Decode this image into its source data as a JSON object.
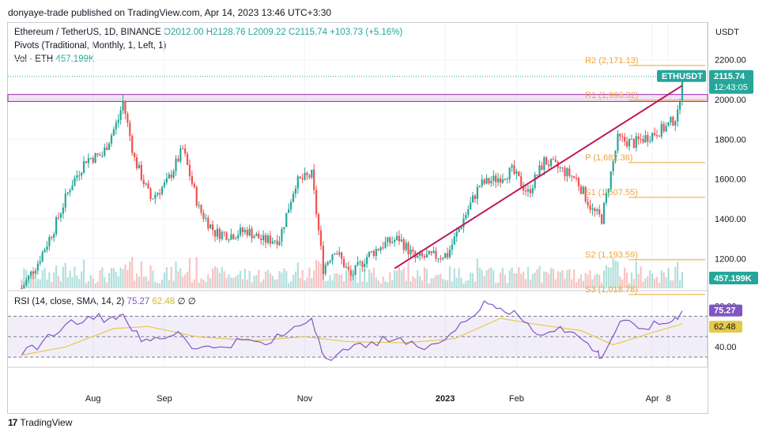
{
  "header": {
    "published": "donyaye-trade published on TradingView.com, Apr 14, 2023 13:46 UTC+3:30"
  },
  "legend": {
    "symbol": "Ethereum / TetherUS, 1D, BINANCE",
    "open": "O2012.00",
    "high": "H2128.76",
    "low": "L2009.22",
    "close": "C2115.74",
    "change": "+103.73 (+5.16%)",
    "pivots": "Pivots (Traditional, Monthly, 1, Left, 1)",
    "vol_label": "Vol · ETH",
    "vol_value": "457.199K"
  },
  "rsi_legend": {
    "label": "RSI (14, close, SMA, 14, 2)",
    "rsi": "75.27",
    "sma": "62.48",
    "extra": "∅ ∅"
  },
  "footer": {
    "brand": "TradingView",
    "logo": "17"
  },
  "colors": {
    "up": "#26a69a",
    "down": "#ef5350",
    "pivot": "#f0a33a",
    "trend": "#c2185b",
    "rsi": "#7e57c2",
    "rsi_ma": "#e5c94b"
  },
  "chart_data": {
    "type": "candlestick",
    "symbol": "ETHUSDT",
    "currency": "USDT",
    "last_price": "2115.74",
    "countdown": "12:43:05",
    "volume_last": "457.199K",
    "y_ticks": [
      "2200.00",
      "2000.00",
      "1800.00",
      "1600.00",
      "1400.00",
      "1200.00"
    ],
    "y_tick_values": [
      2200,
      2000,
      1800,
      1600,
      1400,
      1200
    ],
    "x_labels": [
      "Aug",
      "Sep",
      "Nov",
      "2023",
      "Feb",
      "Apr",
      "8"
    ],
    "pivots": [
      {
        "label": "R2 (2,171.13)",
        "value": 2171.13
      },
      {
        "label": "R1 (1,996.32)",
        "value": 1996.32
      },
      {
        "label": "P (1,682.36)",
        "value": 1682.36
      },
      {
        "label": "S1 (1,507.55)",
        "value": 1507.55
      },
      {
        "label": "S2 (1,193.59)",
        "value": 1193.59
      },
      {
        "label": "S3 (1,018.78)",
        "value": 1018.78
      }
    ],
    "resistance_zone": [
      1990,
      2025
    ],
    "trendline": {
      "from": {
        "date": "2022-12-10",
        "price": 1150
      },
      "to": {
        "date": "2023-04-14",
        "price": 2070
      }
    },
    "price_series": [
      [
        "2022-07-01",
        1050
      ],
      [
        "2022-07-08",
        1180
      ],
      [
        "2022-07-15",
        1350
      ],
      [
        "2022-07-22",
        1560
      ],
      [
        "2022-07-29",
        1700
      ],
      [
        "2022-08-05",
        1720
      ],
      [
        "2022-08-12",
        1900
      ],
      [
        "2022-08-14",
        1990
      ],
      [
        "2022-08-19",
        1700
      ],
      [
        "2022-08-26",
        1500
      ],
      [
        "2022-09-02",
        1580
      ],
      [
        "2022-09-09",
        1750
      ],
      [
        "2022-09-16",
        1450
      ],
      [
        "2022-09-23",
        1330
      ],
      [
        "2022-09-30",
        1320
      ],
      [
        "2022-10-07",
        1340
      ],
      [
        "2022-10-14",
        1290
      ],
      [
        "2022-10-21",
        1300
      ],
      [
        "2022-10-28",
        1580
      ],
      [
        "2022-11-04",
        1620
      ],
      [
        "2022-11-09",
        1150
      ],
      [
        "2022-11-14",
        1250
      ],
      [
        "2022-11-21",
        1110
      ],
      [
        "2022-11-28",
        1210
      ],
      [
        "2022-12-05",
        1270
      ],
      [
        "2022-12-12",
        1300
      ],
      [
        "2022-12-19",
        1200
      ],
      [
        "2022-12-26",
        1210
      ],
      [
        "2023-01-02",
        1220
      ],
      [
        "2023-01-09",
        1400
      ],
      [
        "2023-01-16",
        1570
      ],
      [
        "2023-01-23",
        1600
      ],
      [
        "2023-01-30",
        1640
      ],
      [
        "2023-02-06",
        1530
      ],
      [
        "2023-02-13",
        1690
      ],
      [
        "2023-02-20",
        1650
      ],
      [
        "2023-02-27",
        1600
      ],
      [
        "2023-03-06",
        1440
      ],
      [
        "2023-03-10",
        1400
      ],
      [
        "2023-03-17",
        1800
      ],
      [
        "2023-03-24",
        1780
      ],
      [
        "2023-03-31",
        1820
      ],
      [
        "2023-04-07",
        1860
      ],
      [
        "2023-04-12",
        1920
      ],
      [
        "2023-04-14",
        2115
      ]
    ],
    "rsi": {
      "ticks": [
        "80.00",
        "40.00"
      ],
      "tick_values": [
        80,
        40
      ],
      "bands": [
        70,
        50,
        30
      ],
      "rsi_value": "75.27",
      "sma_value": "62.48",
      "rsi_series": [
        [
          "2022-07-01",
          32
        ],
        [
          "2022-07-10",
          45
        ],
        [
          "2022-07-20",
          62
        ],
        [
          "2022-07-30",
          70
        ],
        [
          "2022-08-08",
          68
        ],
        [
          "2022-08-14",
          72
        ],
        [
          "2022-08-22",
          45
        ],
        [
          "2022-08-30",
          48
        ],
        [
          "2022-09-07",
          55
        ],
        [
          "2022-09-15",
          38
        ],
        [
          "2022-09-25",
          40
        ],
        [
          "2022-10-05",
          47
        ],
        [
          "2022-10-15",
          42
        ],
        [
          "2022-10-25",
          55
        ],
        [
          "2022-11-04",
          68
        ],
        [
          "2022-11-10",
          29
        ],
        [
          "2022-11-20",
          37
        ],
        [
          "2022-11-30",
          45
        ],
        [
          "2022-12-10",
          47
        ],
        [
          "2022-12-20",
          40
        ],
        [
          "2023-01-01",
          47
        ],
        [
          "2023-01-10",
          65
        ],
        [
          "2023-01-18",
          85
        ],
        [
          "2023-01-25",
          78
        ],
        [
          "2023-02-02",
          70
        ],
        [
          "2023-02-10",
          52
        ],
        [
          "2023-02-20",
          60
        ],
        [
          "2023-02-28",
          50
        ],
        [
          "2023-03-08",
          35
        ],
        [
          "2023-03-10",
          29
        ],
        [
          "2023-03-18",
          65
        ],
        [
          "2023-03-26",
          58
        ],
        [
          "2023-04-04",
          62
        ],
        [
          "2023-04-10",
          66
        ],
        [
          "2023-04-14",
          75.27
        ]
      ],
      "sma_series": [
        [
          "2022-07-01",
          32
        ],
        [
          "2022-07-20",
          40
        ],
        [
          "2022-08-10",
          58
        ],
        [
          "2022-08-25",
          60
        ],
        [
          "2022-09-15",
          50
        ],
        [
          "2022-10-10",
          46
        ],
        [
          "2022-11-01",
          50
        ],
        [
          "2022-11-20",
          45
        ],
        [
          "2022-12-15",
          44
        ],
        [
          "2023-01-05",
          48
        ],
        [
          "2023-01-25",
          68
        ],
        [
          "2023-02-10",
          62
        ],
        [
          "2023-03-01",
          56
        ],
        [
          "2023-03-15",
          42
        ],
        [
          "2023-04-01",
          54
        ],
        [
          "2023-04-14",
          62.48
        ]
      ]
    }
  }
}
